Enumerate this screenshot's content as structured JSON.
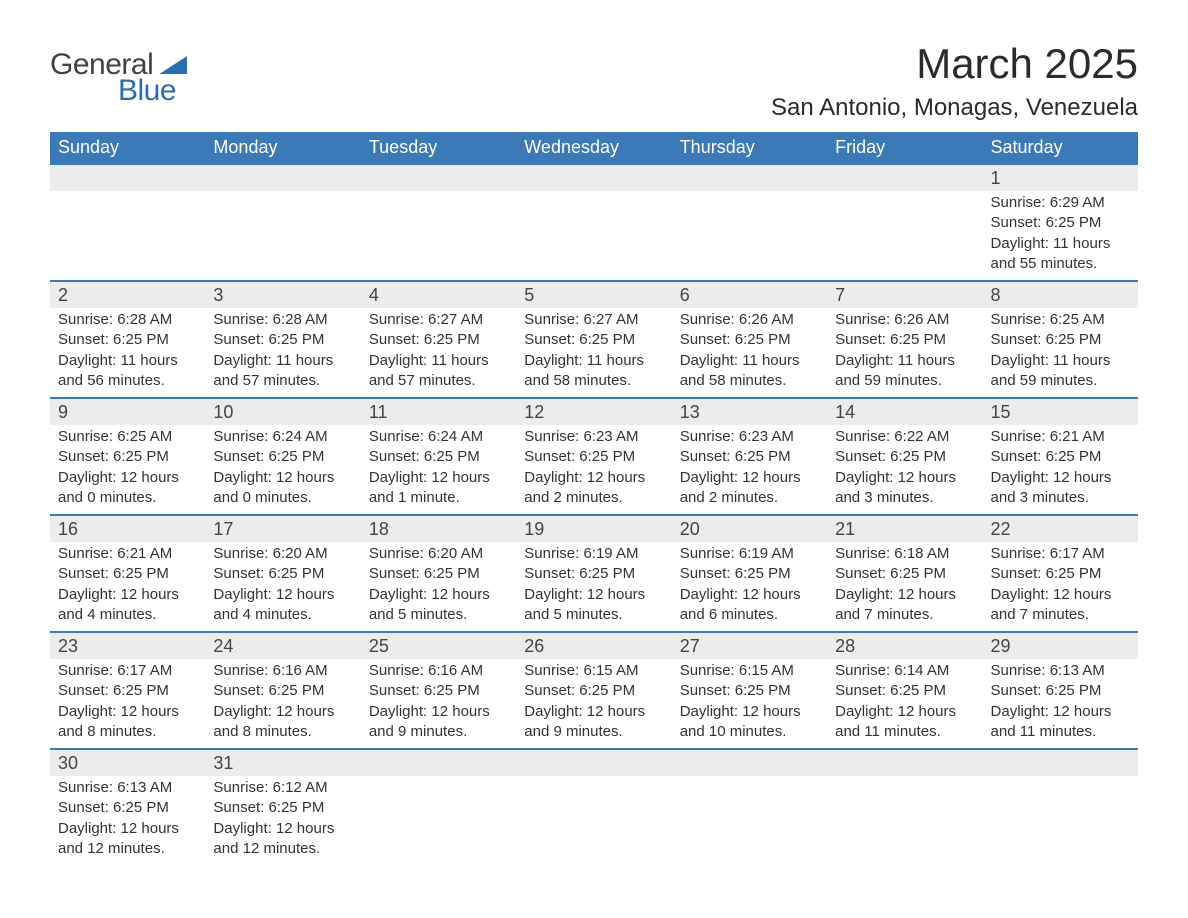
{
  "logo": {
    "text1": "General",
    "text2": "Blue"
  },
  "title": "March 2025",
  "location": "San Antonio, Monagas, Venezuela",
  "colors": {
    "header_bg": "#3b79b7",
    "header_text": "#ffffff",
    "daynum_bg": "#ececec",
    "row_divider": "#3b79b7",
    "body_text": "#333333",
    "logo_accent": "#2a6db5"
  },
  "day_headers": [
    "Sunday",
    "Monday",
    "Tuesday",
    "Wednesday",
    "Thursday",
    "Friday",
    "Saturday"
  ],
  "weeks": [
    [
      null,
      null,
      null,
      null,
      null,
      null,
      {
        "n": "1",
        "sr": "Sunrise: 6:29 AM",
        "ss": "Sunset: 6:25 PM",
        "d1": "Daylight: 11 hours",
        "d2": "and 55 minutes."
      }
    ],
    [
      {
        "n": "2",
        "sr": "Sunrise: 6:28 AM",
        "ss": "Sunset: 6:25 PM",
        "d1": "Daylight: 11 hours",
        "d2": "and 56 minutes."
      },
      {
        "n": "3",
        "sr": "Sunrise: 6:28 AM",
        "ss": "Sunset: 6:25 PM",
        "d1": "Daylight: 11 hours",
        "d2": "and 57 minutes."
      },
      {
        "n": "4",
        "sr": "Sunrise: 6:27 AM",
        "ss": "Sunset: 6:25 PM",
        "d1": "Daylight: 11 hours",
        "d2": "and 57 minutes."
      },
      {
        "n": "5",
        "sr": "Sunrise: 6:27 AM",
        "ss": "Sunset: 6:25 PM",
        "d1": "Daylight: 11 hours",
        "d2": "and 58 minutes."
      },
      {
        "n": "6",
        "sr": "Sunrise: 6:26 AM",
        "ss": "Sunset: 6:25 PM",
        "d1": "Daylight: 11 hours",
        "d2": "and 58 minutes."
      },
      {
        "n": "7",
        "sr": "Sunrise: 6:26 AM",
        "ss": "Sunset: 6:25 PM",
        "d1": "Daylight: 11 hours",
        "d2": "and 59 minutes."
      },
      {
        "n": "8",
        "sr": "Sunrise: 6:25 AM",
        "ss": "Sunset: 6:25 PM",
        "d1": "Daylight: 11 hours",
        "d2": "and 59 minutes."
      }
    ],
    [
      {
        "n": "9",
        "sr": "Sunrise: 6:25 AM",
        "ss": "Sunset: 6:25 PM",
        "d1": "Daylight: 12 hours",
        "d2": "and 0 minutes."
      },
      {
        "n": "10",
        "sr": "Sunrise: 6:24 AM",
        "ss": "Sunset: 6:25 PM",
        "d1": "Daylight: 12 hours",
        "d2": "and 0 minutes."
      },
      {
        "n": "11",
        "sr": "Sunrise: 6:24 AM",
        "ss": "Sunset: 6:25 PM",
        "d1": "Daylight: 12 hours",
        "d2": "and 1 minute."
      },
      {
        "n": "12",
        "sr": "Sunrise: 6:23 AM",
        "ss": "Sunset: 6:25 PM",
        "d1": "Daylight: 12 hours",
        "d2": "and 2 minutes."
      },
      {
        "n": "13",
        "sr": "Sunrise: 6:23 AM",
        "ss": "Sunset: 6:25 PM",
        "d1": "Daylight: 12 hours",
        "d2": "and 2 minutes."
      },
      {
        "n": "14",
        "sr": "Sunrise: 6:22 AM",
        "ss": "Sunset: 6:25 PM",
        "d1": "Daylight: 12 hours",
        "d2": "and 3 minutes."
      },
      {
        "n": "15",
        "sr": "Sunrise: 6:21 AM",
        "ss": "Sunset: 6:25 PM",
        "d1": "Daylight: 12 hours",
        "d2": "and 3 minutes."
      }
    ],
    [
      {
        "n": "16",
        "sr": "Sunrise: 6:21 AM",
        "ss": "Sunset: 6:25 PM",
        "d1": "Daylight: 12 hours",
        "d2": "and 4 minutes."
      },
      {
        "n": "17",
        "sr": "Sunrise: 6:20 AM",
        "ss": "Sunset: 6:25 PM",
        "d1": "Daylight: 12 hours",
        "d2": "and 4 minutes."
      },
      {
        "n": "18",
        "sr": "Sunrise: 6:20 AM",
        "ss": "Sunset: 6:25 PM",
        "d1": "Daylight: 12 hours",
        "d2": "and 5 minutes."
      },
      {
        "n": "19",
        "sr": "Sunrise: 6:19 AM",
        "ss": "Sunset: 6:25 PM",
        "d1": "Daylight: 12 hours",
        "d2": "and 5 minutes."
      },
      {
        "n": "20",
        "sr": "Sunrise: 6:19 AM",
        "ss": "Sunset: 6:25 PM",
        "d1": "Daylight: 12 hours",
        "d2": "and 6 minutes."
      },
      {
        "n": "21",
        "sr": "Sunrise: 6:18 AM",
        "ss": "Sunset: 6:25 PM",
        "d1": "Daylight: 12 hours",
        "d2": "and 7 minutes."
      },
      {
        "n": "22",
        "sr": "Sunrise: 6:17 AM",
        "ss": "Sunset: 6:25 PM",
        "d1": "Daylight: 12 hours",
        "d2": "and 7 minutes."
      }
    ],
    [
      {
        "n": "23",
        "sr": "Sunrise: 6:17 AM",
        "ss": "Sunset: 6:25 PM",
        "d1": "Daylight: 12 hours",
        "d2": "and 8 minutes."
      },
      {
        "n": "24",
        "sr": "Sunrise: 6:16 AM",
        "ss": "Sunset: 6:25 PM",
        "d1": "Daylight: 12 hours",
        "d2": "and 8 minutes."
      },
      {
        "n": "25",
        "sr": "Sunrise: 6:16 AM",
        "ss": "Sunset: 6:25 PM",
        "d1": "Daylight: 12 hours",
        "d2": "and 9 minutes."
      },
      {
        "n": "26",
        "sr": "Sunrise: 6:15 AM",
        "ss": "Sunset: 6:25 PM",
        "d1": "Daylight: 12 hours",
        "d2": "and 9 minutes."
      },
      {
        "n": "27",
        "sr": "Sunrise: 6:15 AM",
        "ss": "Sunset: 6:25 PM",
        "d1": "Daylight: 12 hours",
        "d2": "and 10 minutes."
      },
      {
        "n": "28",
        "sr": "Sunrise: 6:14 AM",
        "ss": "Sunset: 6:25 PM",
        "d1": "Daylight: 12 hours",
        "d2": "and 11 minutes."
      },
      {
        "n": "29",
        "sr": "Sunrise: 6:13 AM",
        "ss": "Sunset: 6:25 PM",
        "d1": "Daylight: 12 hours",
        "d2": "and 11 minutes."
      }
    ],
    [
      {
        "n": "30",
        "sr": "Sunrise: 6:13 AM",
        "ss": "Sunset: 6:25 PM",
        "d1": "Daylight: 12 hours",
        "d2": "and 12 minutes."
      },
      {
        "n": "31",
        "sr": "Sunrise: 6:12 AM",
        "ss": "Sunset: 6:25 PM",
        "d1": "Daylight: 12 hours",
        "d2": "and 12 minutes."
      },
      null,
      null,
      null,
      null,
      null
    ]
  ]
}
